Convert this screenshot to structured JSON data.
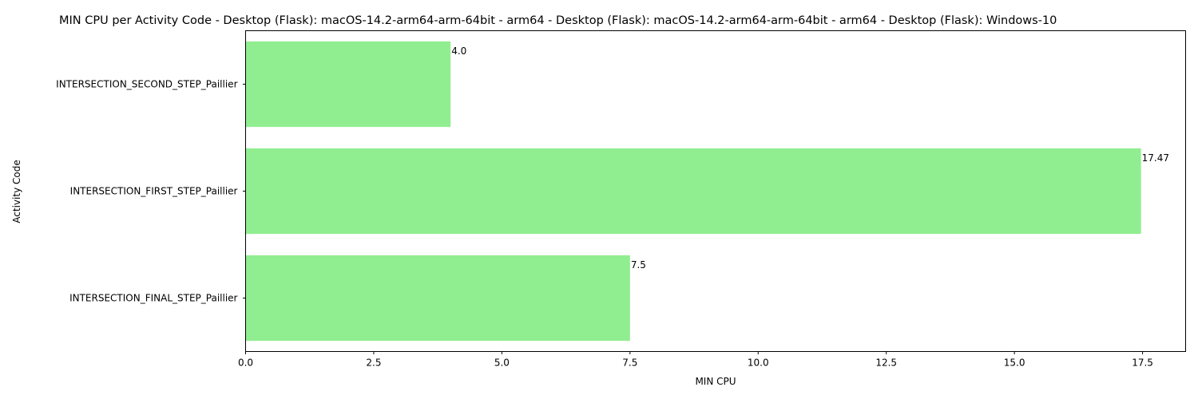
{
  "chart_data": {
    "type": "bar",
    "orientation": "horizontal",
    "title": "MIN CPU per Activity Code - Desktop (Flask): macOS-14.2-arm64-arm-64bit - arm64 - Desktop (Flask): macOS-14.2-arm64-arm-64bit - arm64 - Desktop (Flask): Windows-10",
    "xlabel": "MIN CPU",
    "ylabel": "Activity Code",
    "categories": [
      "INTERSECTION_SECOND_STEP_Paillier",
      "INTERSECTION_FIRST_STEP_Paillier",
      "INTERSECTION_FINAL_STEP_Paillier"
    ],
    "values": [
      4.0,
      17.47,
      7.5
    ],
    "data_labels": [
      "4.0",
      "17.47",
      "7.5"
    ],
    "xlim": [
      0,
      18.34
    ],
    "xticks": [
      0,
      2.5,
      5,
      7.5,
      10,
      12.5,
      15,
      17.5
    ],
    "xtick_labels": [
      "0.0",
      "2.5",
      "5.0",
      "7.5",
      "10.0",
      "12.5",
      "15.0",
      "17.5"
    ],
    "bar_color": "#90ee90",
    "grid": false,
    "legend": "none"
  }
}
